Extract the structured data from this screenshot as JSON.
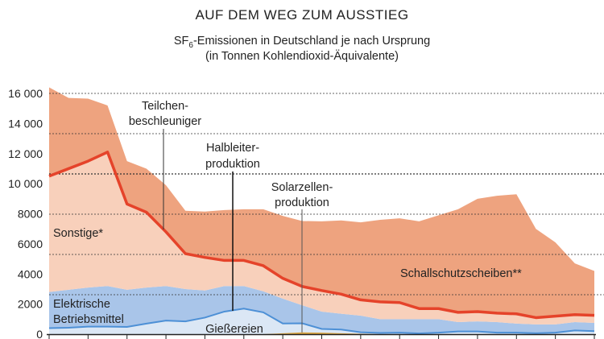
{
  "chart_data": {
    "type": "area",
    "stacked": true,
    "title": "AUF DEM WEG ZUM AUSSTIEG",
    "subtitle_line1_pre": "SF",
    "subtitle_line1_sub": "6",
    "subtitle_line1_post": "-Emissionen in Deutschland je nach Ursprung",
    "subtitle_line2": "(in Tonnen Kohlendioxid-Äquivalente)",
    "ylim": [
      0,
      16000
    ],
    "yticks": [
      0,
      2000,
      4000,
      6000,
      8000,
      10000,
      12000,
      14000,
      16000
    ],
    "ytick_labels": [
      "0",
      "2000",
      "4000",
      "6000",
      "8000",
      "10 000",
      "12 000",
      "14 000",
      "16 000"
    ],
    "grid": true,
    "series": [
      {
        "name": "Solarzellenproduktion",
        "color": "#d9a441",
        "values": [
          0,
          0,
          0,
          0,
          0,
          0,
          0,
          0,
          0,
          0,
          0,
          0,
          60,
          120,
          100,
          60,
          30,
          0,
          0,
          0,
          0,
          0,
          0,
          0,
          0,
          0,
          0,
          0,
          0
        ]
      },
      {
        "name": "Gießereien",
        "color": "#dbe7f5",
        "values": [
          400,
          430,
          500,
          500,
          480,
          700,
          900,
          850,
          1100,
          1500,
          1700,
          1450,
          650,
          600,
          250,
          250,
          100,
          80,
          100,
          50,
          100,
          180,
          180,
          100,
          100,
          60,
          100,
          250,
          200
        ]
      },
      {
        "name": "Elektrische Betriebsmittel",
        "color": "#a9c5e9",
        "values": [
          2400,
          2520,
          2600,
          2700,
          2470,
          2400,
          2300,
          2150,
          1800,
          1700,
          1500,
          1400,
          1650,
          1200,
          1150,
          1050,
          1100,
          920,
          900,
          950,
          900,
          620,
          670,
          700,
          600,
          590,
          550,
          550,
          550
        ]
      },
      {
        "name": "Sonstige*",
        "color": "#f8d0bb",
        "values": [
          7700,
          8050,
          8400,
          8900,
          5700,
          5000,
          3600,
          2350,
          2200,
          1700,
          1700,
          1700,
          1350,
          1250,
          1400,
          1300,
          1050,
          1150,
          1100,
          700,
          700,
          650,
          650,
          600,
          650,
          450,
          550,
          500,
          500
        ]
      },
      {
        "name": "Schallschutzscheiben**",
        "color": "#eea37f",
        "values": [
          5900,
          4700,
          4150,
          3100,
          2850,
          2900,
          3100,
          2850,
          3050,
          3350,
          3400,
          3750,
          4150,
          4350,
          4600,
          4900,
          5150,
          5450,
          5600,
          5800,
          6200,
          6850,
          7500,
          7800,
          7950,
          5900,
          4900,
          3400,
          2950
        ]
      }
    ],
    "lines": {
      "sonstige_top_color": "#e5432a",
      "giessereien_top_color": "#4d90d6"
    },
    "annotations": {
      "teilchen_1": "Teilchen-",
      "teilchen_2": "beschleuniger",
      "halbleiter_1": "Halbleiter-",
      "halbleiter_2": "produktion",
      "solar_1": "Solarzellen-",
      "solar_2": "produktion",
      "sonstige": "Sonstige*",
      "elektrisch_1": "Elektrische",
      "elektrisch_2": "Betriebsmittel",
      "giessereien": "Gießereien",
      "schall": "Schallschutzscheiben**"
    }
  }
}
